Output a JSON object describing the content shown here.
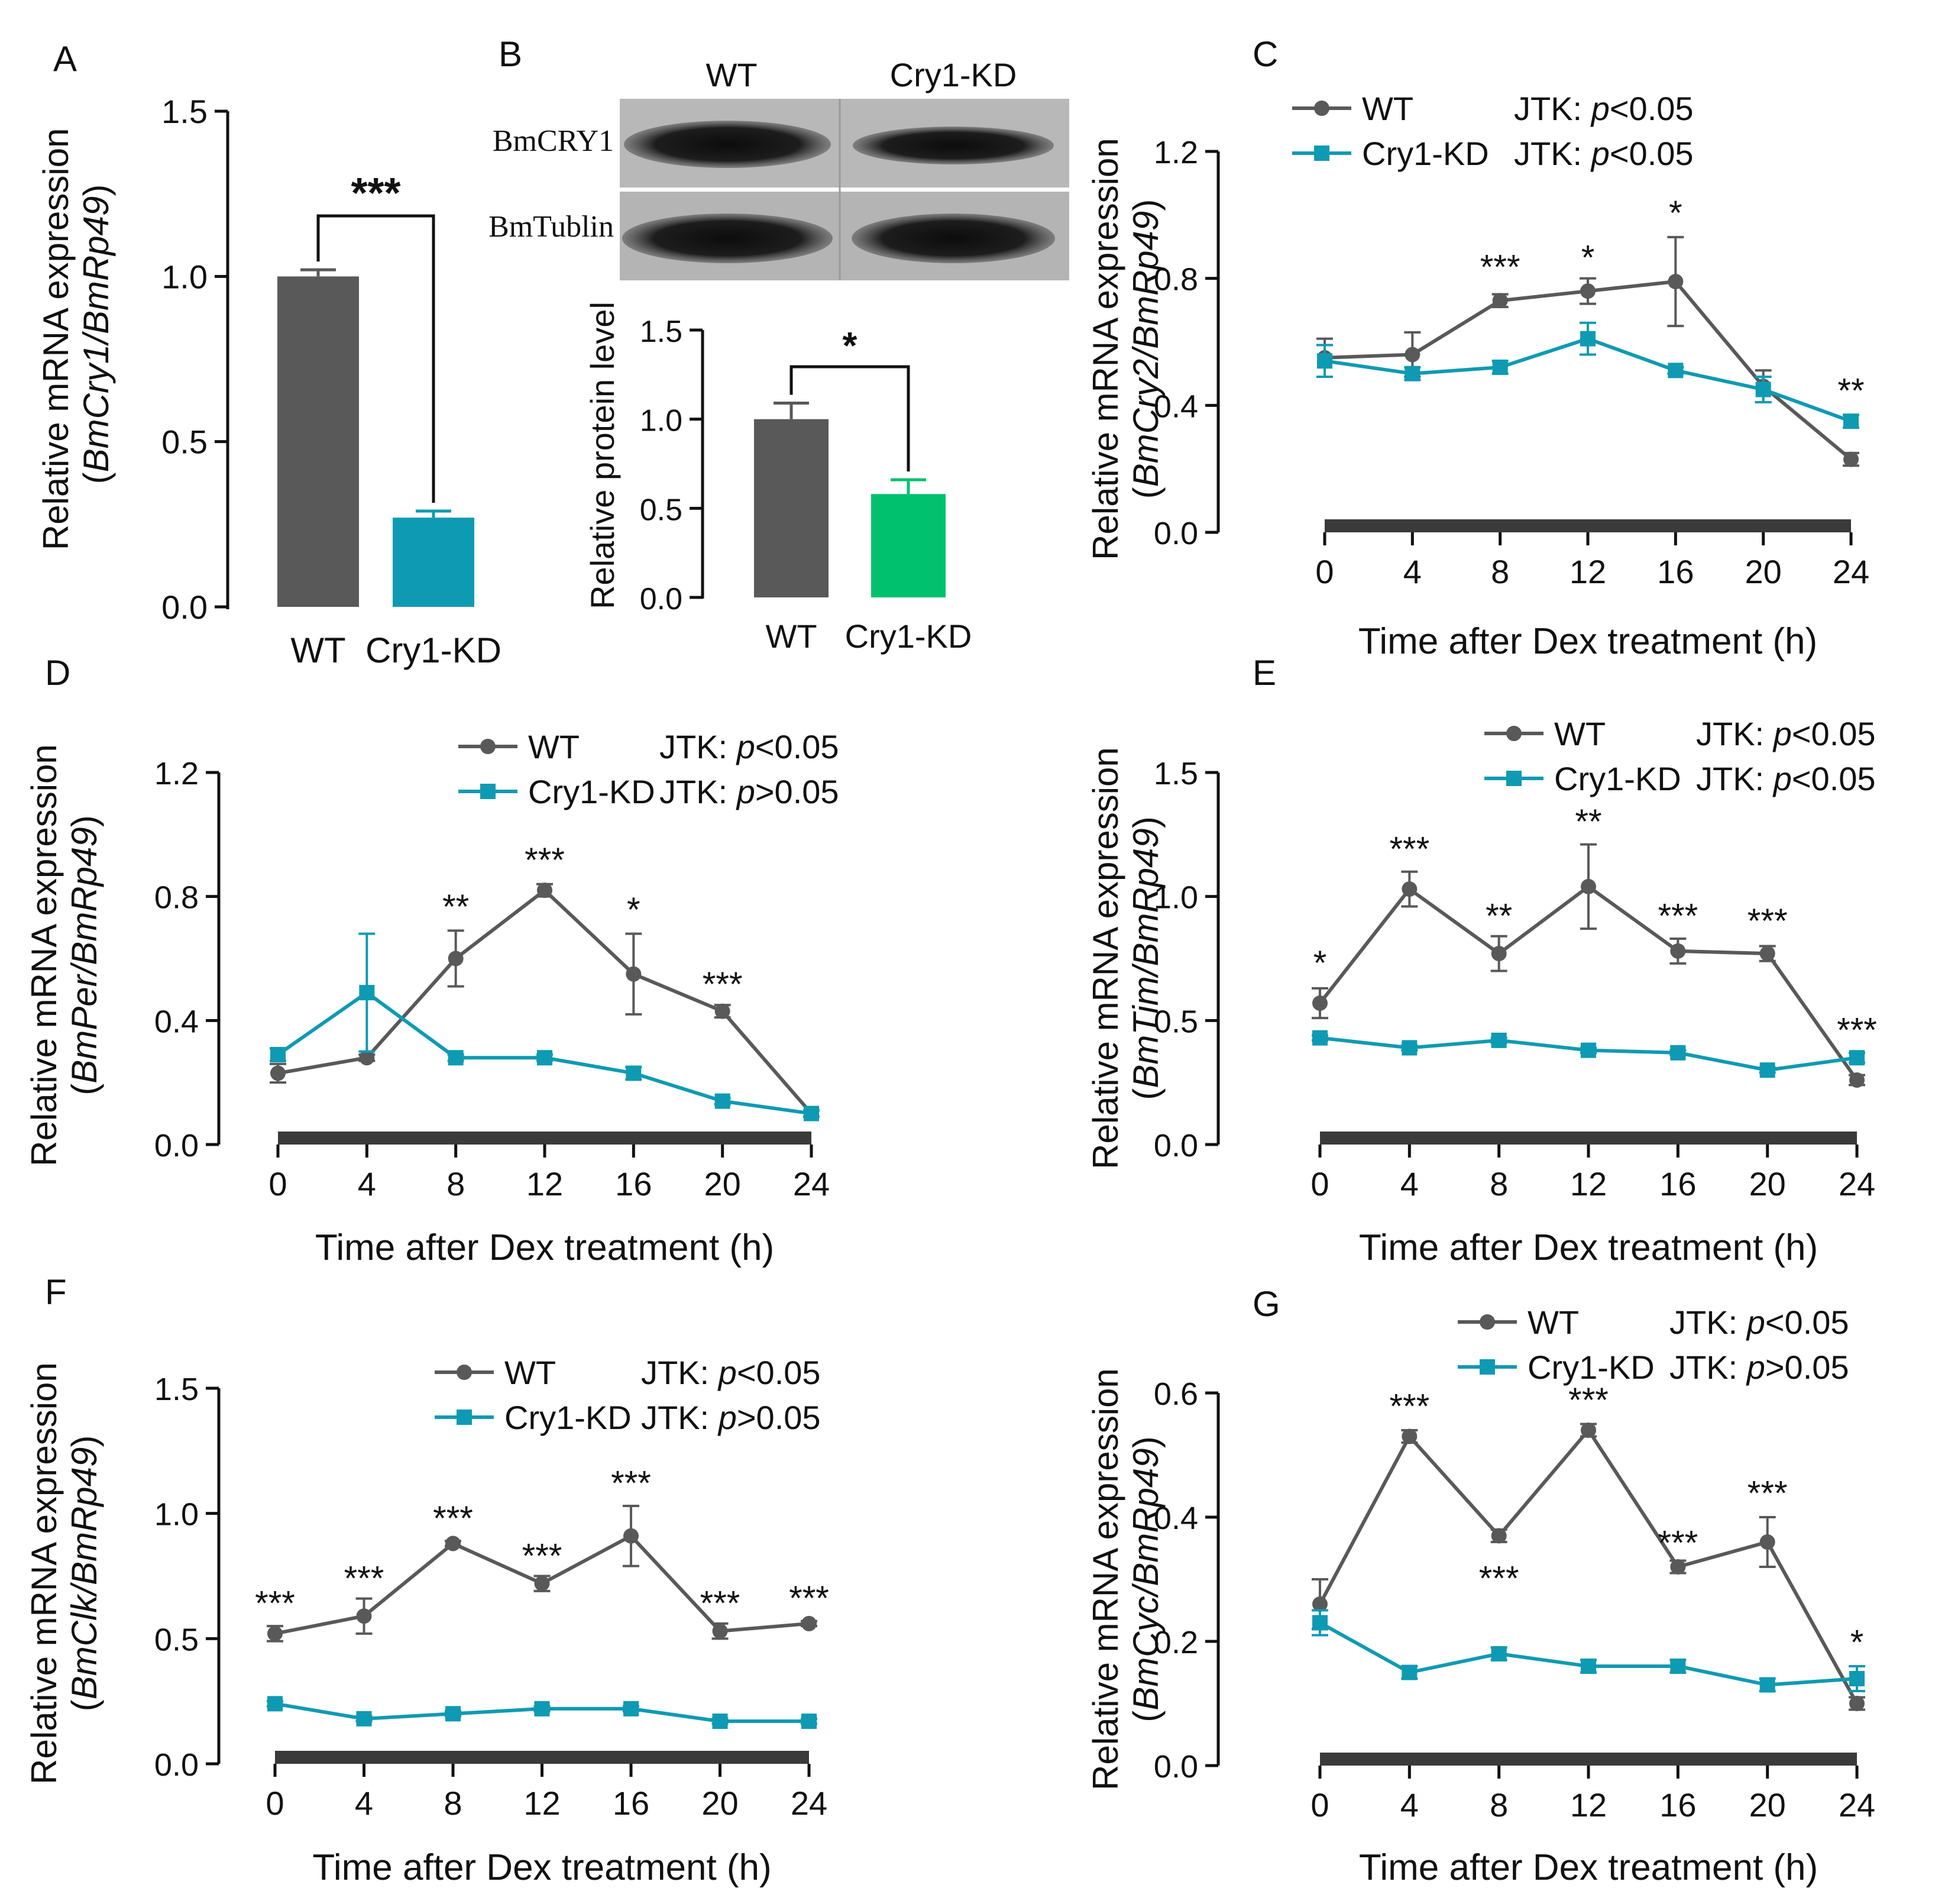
{
  "colors": {
    "wt": "#595959",
    "kd": "#0F9AB3",
    "kd_protein": "#00C16E",
    "axis": "#111111",
    "bar": "#3a3a3a"
  },
  "panelA": {
    "letter": "A",
    "ylabel": "Relative mRNA expression",
    "ylabel_gene": "BmCry1/BmRp49",
    "ylabel_tail": ")",
    "chart_data": {
      "type": "bar",
      "categories": [
        "WT",
        "Cry1-KD"
      ],
      "values": [
        1.0,
        0.27
      ],
      "errors": [
        0.02,
        0.02
      ],
      "ylim": [
        0,
        1.5
      ],
      "yticks": [
        "0.0",
        "0.5",
        "1.0",
        "1.5"
      ],
      "significance": "***"
    }
  },
  "panelB": {
    "letter": "B",
    "blot_columns": [
      "WT",
      "Cry1-KD"
    ],
    "blot_rows": [
      "BmCRY1",
      "BmTublin"
    ],
    "ylabel": "Relative protein level",
    "chart_data": {
      "type": "bar",
      "categories": [
        "WT",
        "Cry1-KD"
      ],
      "values": [
        1.0,
        0.58
      ],
      "errors": [
        0.09,
        0.08
      ],
      "ylim": [
        0,
        1.5
      ],
      "yticks": [
        "0.0",
        "0.5",
        "1.0",
        "1.5"
      ],
      "significance": "*"
    }
  },
  "line_panels": [
    {
      "id": "C",
      "letter": "C",
      "gene": "BmCry2/BmRp49",
      "xlabel": "Time after Dex treatment (h)",
      "legend": [
        {
          "name": "WT",
          "jtk": "JTK: ",
          "p": "p",
          "jtk_tail": "<0.05"
        },
        {
          "name": "Cry1-KD",
          "jtk": "JTK: ",
          "p": "p",
          "jtk_tail": "<0.05"
        }
      ],
      "chart_data": {
        "type": "line",
        "x": [
          0,
          4,
          8,
          12,
          16,
          20,
          24
        ],
        "xticks": [
          "0",
          "4",
          "8",
          "12",
          "16",
          "20",
          "24"
        ],
        "ylim": [
          0,
          1.2
        ],
        "yticks": [
          "0.0",
          "0.4",
          "0.8",
          "1.2"
        ],
        "series": [
          {
            "name": "WT",
            "values": [
              0.55,
              0.56,
              0.73,
              0.76,
              0.79,
              0.46,
              0.23
            ],
            "errors": [
              0.06,
              0.07,
              0.02,
              0.04,
              0.14,
              0.05,
              0.02
            ]
          },
          {
            "name": "Cry1-KD",
            "values": [
              0.54,
              0.5,
              0.52,
              0.61,
              0.51,
              0.45,
              0.35
            ],
            "errors": [
              0.05,
              0.02,
              0.02,
              0.05,
              0.01,
              0.04,
              0.02
            ]
          }
        ],
        "stars": [
          {
            "x": 8,
            "y": 0.78,
            "label": "***"
          },
          {
            "x": 12,
            "y": 0.81,
            "label": "*"
          },
          {
            "x": 16,
            "y": 0.95,
            "label": "*"
          },
          {
            "x": 24,
            "y": 0.39,
            "label": "**"
          }
        ]
      }
    },
    {
      "id": "D",
      "letter": "D",
      "gene": "BmPer/BmRp49",
      "xlabel": "Time after Dex treatment (h)",
      "legend": [
        {
          "name": "WT",
          "jtk": "JTK: ",
          "p": "p",
          "jtk_tail": "<0.05"
        },
        {
          "name": "Cry1-KD",
          "jtk": "JTK: ",
          "p": "p",
          "jtk_tail": ">0.05"
        }
      ],
      "chart_data": {
        "type": "line",
        "x": [
          0,
          4,
          8,
          12,
          16,
          20,
          24
        ],
        "xticks": [
          "0",
          "4",
          "8",
          "12",
          "16",
          "20",
          "24"
        ],
        "ylim": [
          0,
          1.2
        ],
        "yticks": [
          "0.0",
          "0.4",
          "0.8",
          "1.2"
        ],
        "series": [
          {
            "name": "WT",
            "values": [
              0.23,
              0.28,
              0.6,
              0.82,
              0.55,
              0.43,
              0.1
            ],
            "errors": [
              0.03,
              0.01,
              0.09,
              0.02,
              0.13,
              0.02,
              0.01
            ]
          },
          {
            "name": "Cry1-KD",
            "values": [
              0.29,
              0.49,
              0.28,
              0.28,
              0.23,
              0.14,
              0.1
            ],
            "errors": [
              0.02,
              0.19,
              0.01,
              0.01,
              0.02,
              0.01,
              0.01
            ]
          }
        ],
        "stars": [
          {
            "x": 8,
            "y": 0.71,
            "label": "**"
          },
          {
            "x": 12,
            "y": 0.86,
            "label": "***"
          },
          {
            "x": 16,
            "y": 0.7,
            "label": "*"
          },
          {
            "x": 20,
            "y": 0.46,
            "label": "***"
          }
        ]
      }
    },
    {
      "id": "E",
      "letter": "E",
      "gene": "BmTim/BmRp49",
      "xlabel": "Time after Dex treatment (h)",
      "legend": [
        {
          "name": "WT",
          "jtk": "JTK: ",
          "p": "p",
          "jtk_tail": "<0.05"
        },
        {
          "name": "Cry1-KD",
          "jtk": "JTK: ",
          "p": "p",
          "jtk_tail": "<0.05"
        }
      ],
      "chart_data": {
        "type": "line",
        "x": [
          0,
          4,
          8,
          12,
          16,
          20,
          24
        ],
        "xticks": [
          "0",
          "4",
          "8",
          "12",
          "16",
          "20",
          "24"
        ],
        "ylim": [
          0,
          1.5
        ],
        "yticks": [
          "0.0",
          "0.5",
          "1.0",
          "1.5"
        ],
        "series": [
          {
            "name": "WT",
            "values": [
              0.57,
              1.03,
              0.77,
              1.04,
              0.78,
              0.77,
              0.26
            ],
            "errors": [
              0.06,
              0.07,
              0.07,
              0.17,
              0.05,
              0.03,
              0.02
            ]
          },
          {
            "name": "Cry1-KD",
            "values": [
              0.43,
              0.39,
              0.42,
              0.38,
              0.37,
              0.3,
              0.35
            ],
            "errors": [
              0.01,
              0.01,
              0.01,
              0.01,
              0.01,
              0.01,
              0.02
            ]
          }
        ],
        "stars": [
          {
            "x": 0,
            "y": 0.66,
            "label": "*"
          },
          {
            "x": 4,
            "y": 1.12,
            "label": "***"
          },
          {
            "x": 8,
            "y": 0.85,
            "label": "**"
          },
          {
            "x": 12,
            "y": 1.23,
            "label": "**"
          },
          {
            "x": 16,
            "y": 0.85,
            "label": "***"
          },
          {
            "x": 20,
            "y": 0.83,
            "label": "***"
          },
          {
            "x": 24,
            "y": 0.39,
            "label": "***"
          }
        ]
      }
    },
    {
      "id": "F",
      "letter": "F",
      "gene": "BmClk/BmRp49",
      "xlabel": "Time after Dex treatment (h)",
      "legend": [
        {
          "name": "WT",
          "jtk": "JTK: ",
          "p": "p",
          "jtk_tail": "<0.05"
        },
        {
          "name": "Cry1-KD",
          "jtk": "JTK: ",
          "p": "p",
          "jtk_tail": ">0.05"
        }
      ],
      "chart_data": {
        "type": "line",
        "x": [
          0,
          4,
          8,
          12,
          16,
          20,
          24
        ],
        "xticks": [
          "0",
          "4",
          "8",
          "12",
          "16",
          "20",
          "24"
        ],
        "ylim": [
          0,
          1.5
        ],
        "yticks": [
          "0.0",
          "0.5",
          "1.0",
          "1.5"
        ],
        "series": [
          {
            "name": "WT",
            "values": [
              0.52,
              0.59,
              0.88,
              0.72,
              0.91,
              0.53,
              0.56
            ],
            "errors": [
              0.03,
              0.07,
              0.01,
              0.03,
              0.12,
              0.03,
              0.01
            ]
          },
          {
            "name": "Cry1-KD",
            "values": [
              0.24,
              0.18,
              0.2,
              0.22,
              0.22,
              0.17,
              0.17
            ],
            "errors": [
              0.01,
              0.01,
              0.01,
              0.01,
              0.01,
              0.01,
              0.01
            ]
          }
        ],
        "stars": [
          {
            "x": 0,
            "y": 0.57,
            "label": "***"
          },
          {
            "x": 4,
            "y": 0.67,
            "label": "***"
          },
          {
            "x": 8,
            "y": 0.91,
            "label": "***"
          },
          {
            "x": 12,
            "y": 0.76,
            "label": "***"
          },
          {
            "x": 16,
            "y": 1.05,
            "label": "***"
          },
          {
            "x": 20,
            "y": 0.57,
            "label": "***"
          },
          {
            "x": 24,
            "y": 0.59,
            "label": "***"
          }
        ]
      }
    },
    {
      "id": "G",
      "letter": "G",
      "gene": "BmCyc/BmRp49",
      "xlabel": "Time after Dex treatment (h)",
      "legend": [
        {
          "name": "WT",
          "jtk": "JTK: ",
          "p": "p",
          "jtk_tail": "<0.05"
        },
        {
          "name": "Cry1-KD",
          "jtk": "JTK: ",
          "p": "p",
          "jtk_tail": ">0.05"
        }
      ],
      "chart_data": {
        "type": "line",
        "x": [
          0,
          4,
          8,
          12,
          16,
          20,
          24
        ],
        "xticks": [
          "0",
          "4",
          "8",
          "12",
          "16",
          "20",
          "24"
        ],
        "ylim": [
          0,
          0.6
        ],
        "yticks": [
          "0.0",
          "0.2",
          "0.4",
          "0.6"
        ],
        "series": [
          {
            "name": "WT",
            "values": [
              0.26,
              0.53,
              0.37,
              0.54,
              0.32,
              0.36,
              0.1
            ],
            "errors": [
              0.04,
              0.01,
              0.01,
              0.01,
              0.01,
              0.04,
              0.01
            ]
          },
          {
            "name": "Cry1-KD",
            "values": [
              0.23,
              0.15,
              0.18,
              0.16,
              0.16,
              0.13,
              0.14
            ],
            "errors": [
              0.02,
              0.01,
              0.01,
              0.01,
              0.01,
              0.01,
              0.02
            ]
          }
        ],
        "stars": [
          {
            "x": 4,
            "y": 0.55,
            "label": "***"
          },
          {
            "x": 8,
            "y": 0.33,
            "label": "***",
            "below": true
          },
          {
            "x": 12,
            "y": 0.56,
            "label": "***"
          },
          {
            "x": 16,
            "y": 0.33,
            "label": "***"
          },
          {
            "x": 20,
            "y": 0.41,
            "label": "***"
          },
          {
            "x": 24,
            "y": 0.17,
            "label": "*"
          }
        ]
      }
    }
  ]
}
